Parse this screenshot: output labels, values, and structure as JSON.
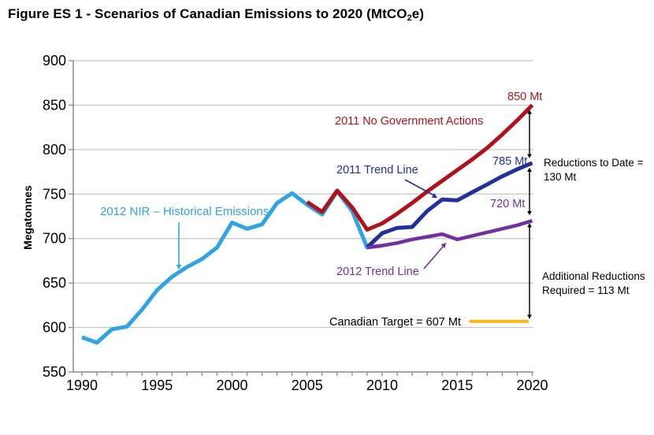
{
  "figure": {
    "title_main": "Figure ES 1 - Scenarios of Canadian Emissions to 2020 (MtCO",
    "title_sub": "2",
    "title_end": "e)"
  },
  "chart_data": {
    "type": "line",
    "title": "Figure ES 1 - Scenarios of Canadian Emissions to 2020 (MtCO2e)",
    "xlabel": "",
    "ylabel": "Megatonnes",
    "ylim": [
      550,
      900
    ],
    "xlim": [
      1990,
      2020
    ],
    "y_ticks": [
      550,
      600,
      650,
      700,
      750,
      800,
      850,
      900
    ],
    "x_ticks": [
      1990,
      1995,
      2000,
      2005,
      2010,
      2015,
      2020
    ],
    "grid": "horizontal",
    "legend_position": "inline-annotations",
    "colors": {
      "historical": "#2FA3E3",
      "no_gov": "#B0121B",
      "trend_2011": "#20309C",
      "trend_2012": "#7030A0",
      "target": "#FFB612",
      "grid": "#C7C7C7",
      "axis": "#8A8A8A",
      "annotation_black": "#000000"
    },
    "series": [
      {
        "name": "2012 NIR – Historical Emissions",
        "color": "#2FA3E3",
        "start_year": 1990,
        "values": [
          589,
          583,
          598,
          601,
          620,
          642,
          657,
          668,
          677,
          690,
          718,
          711,
          716,
          740,
          751,
          738,
          727,
          753,
          731,
          690,
          692
        ]
      },
      {
        "name": "2011 No Government Actions",
        "color": "#B0121B",
        "start_year": 2005,
        "values": [
          741,
          730,
          754,
          735,
          710,
          717,
          728,
          740,
          753,
          765,
          777,
          789,
          802,
          817,
          833,
          850
        ]
      },
      {
        "name": "2011 Trend Line",
        "color": "#20309C",
        "start_year": 2009,
        "values": [
          690,
          706,
          712,
          713,
          731,
          744,
          743,
          752,
          761,
          770,
          778,
          785
        ]
      },
      {
        "name": "2012 Trend Line",
        "color": "#7030A0",
        "start_year": 2009,
        "values": [
          690,
          692,
          695,
          699,
          702,
          705,
          699,
          703,
          707,
          711,
          715,
          720
        ]
      },
      {
        "name": "Canadian Target",
        "color": "#FFB612",
        "x": [
          2015.8,
          2019.75
        ],
        "values": [
          607,
          607
        ]
      }
    ],
    "annotations": {
      "historical": "2012 NIR – Historical Emissions",
      "no_gov": "2011 No Government Actions",
      "trend_2011": "2011 Trend Line",
      "trend_2012": "2012 Trend Line",
      "end_850": "850 Mt",
      "end_785": "785 Mt",
      "end_720": "720 Mt",
      "target": "Canadian Target = 607 Mt",
      "reductions_line1": "Reductions to Date =",
      "reductions_line2": "130 Mt",
      "additional_line1": "Additional Reductions",
      "additional_line2": "Required = 113 Mt"
    },
    "key_values": {
      "end_2020_no_gov": 850,
      "end_2020_trend_2011": 785,
      "end_2020_trend_2012": 720,
      "canadian_target": 607,
      "reductions_to_date_mt": 130,
      "additional_reductions_required_mt": 113
    }
  }
}
